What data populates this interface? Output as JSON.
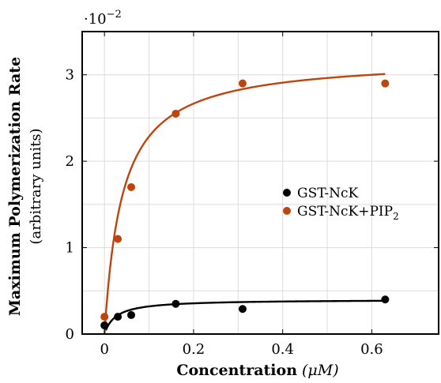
{
  "chart_data": {
    "type": "scatter",
    "title": "",
    "xlabel_bold": "Concentration",
    "xlabel_unit": "(μM)",
    "ylabel_main": "Maximum Polymerization Rate",
    "ylabel_sub": "(arbitrary units)",
    "y_multiplier_label": "·10",
    "y_multiplier_exp": "−2",
    "xlim": [
      -0.05,
      0.75
    ],
    "ylim": [
      0,
      3.5
    ],
    "x_ticks": [
      0,
      0.2,
      0.4,
      0.6
    ],
    "x_tick_labels": [
      "0",
      "0.2",
      "0.4",
      "0.6"
    ],
    "y_ticks": [
      0,
      1,
      2,
      3
    ],
    "y_tick_labels": [
      "0",
      "1",
      "2",
      "3"
    ],
    "grid": true,
    "legend_position": "center-right",
    "series": [
      {
        "name": "GST-NcK",
        "color": "#000000",
        "x": [
          0,
          0.03,
          0.06,
          0.16,
          0.31,
          0.63
        ],
        "y": [
          0.1,
          0.2,
          0.22,
          0.35,
          0.29,
          0.4
        ],
        "fit": {
          "vmax": 0.4,
          "km": 0.025,
          "x_range": [
            0.003,
            0.63
          ]
        }
      },
      {
        "name_base": "GST-NcK+PIP",
        "name_sub": "2",
        "color": "#c0440e",
        "x": [
          0,
          0.03,
          0.06,
          0.16,
          0.31,
          0.63
        ],
        "y": [
          0.2,
          1.1,
          1.7,
          2.55,
          2.9,
          2.9
        ],
        "fit": {
          "vmax": 3.2,
          "km": 0.04,
          "x_range": [
            0,
            0.63
          ]
        }
      }
    ]
  }
}
